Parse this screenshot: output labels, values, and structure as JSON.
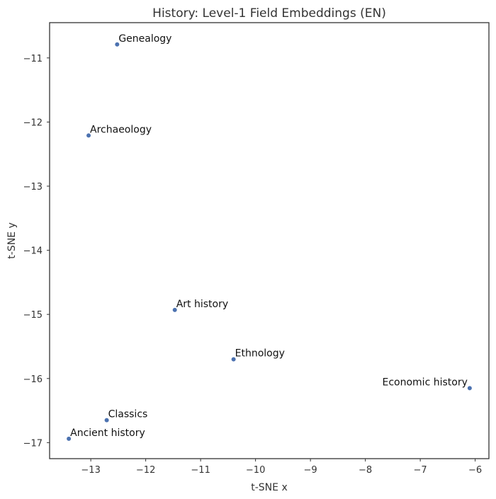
{
  "chart_data": {
    "type": "scatter",
    "title": "History: Level-1 Field Embeddings (EN)",
    "xlabel": "t-SNE x",
    "ylabel": "t-SNE y",
    "xlim": [
      -13.75,
      -5.75
    ],
    "ylim": [
      -17.25,
      -10.45
    ],
    "xticks": [
      -13,
      -12,
      -11,
      -10,
      -9,
      -8,
      -7,
      -6
    ],
    "yticks": [
      -11,
      -12,
      -13,
      -14,
      -15,
      -16,
      -17
    ],
    "grid": false,
    "point_color": "#4c72b0",
    "points": [
      {
        "label": "Genealogy",
        "x": -12.52,
        "y": -10.79
      },
      {
        "label": "Archaeology",
        "x": -13.04,
        "y": -12.21
      },
      {
        "label": "Art history",
        "x": -11.47,
        "y": -14.93
      },
      {
        "label": "Ethnology",
        "x": -10.4,
        "y": -15.7
      },
      {
        "label": "Economic history",
        "x": -6.1,
        "y": -16.15
      },
      {
        "label": "Classics",
        "x": -12.71,
        "y": -16.65
      },
      {
        "label": "Ancient history",
        "x": -13.4,
        "y": -16.94
      }
    ]
  }
}
